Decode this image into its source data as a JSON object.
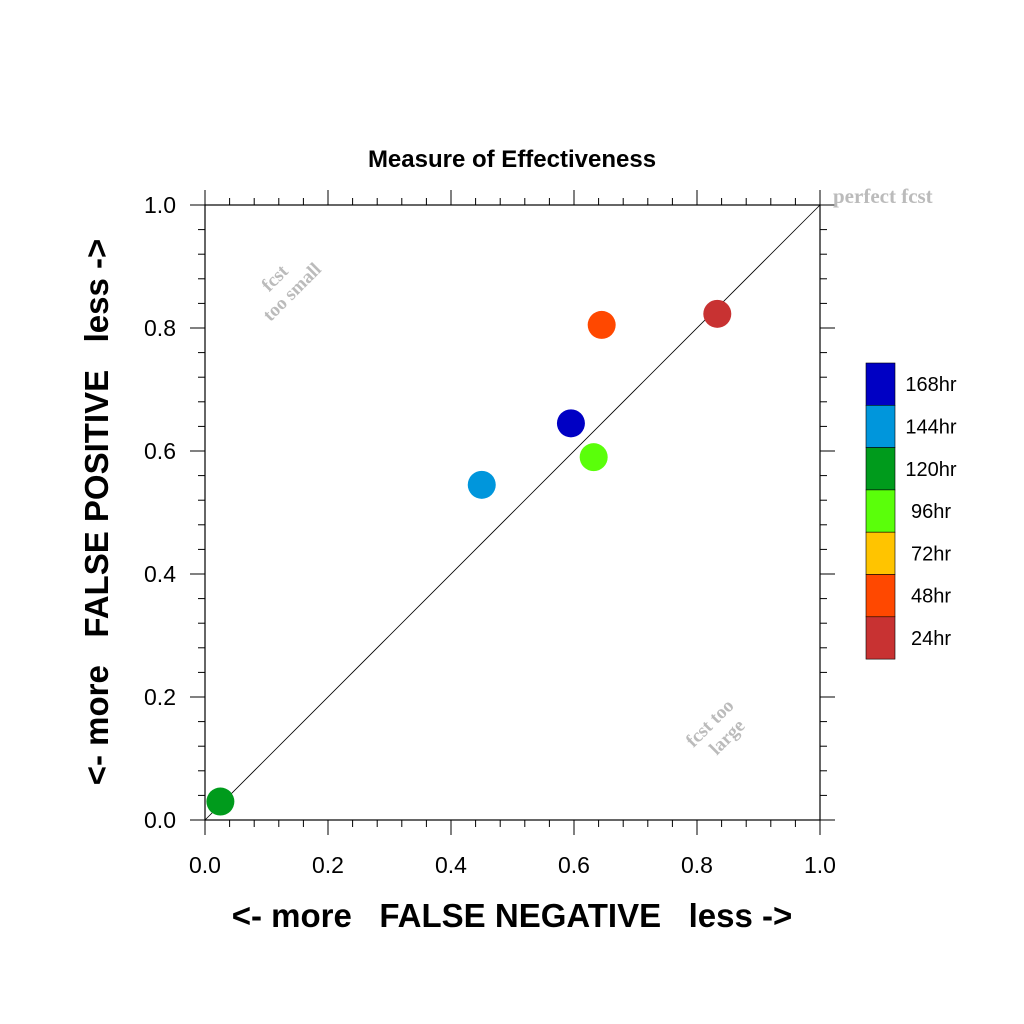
{
  "chart_data": {
    "type": "scatter",
    "title": "Measure of Effectiveness",
    "xlabel": "<- more   FALSE NEGATIVE   less ->",
    "ylabel": "<- more   FALSE POSITIVE   less ->",
    "xlim": [
      0.0,
      1.0
    ],
    "ylim": [
      0.0,
      1.0
    ],
    "xticks": [
      "0.0",
      "0.2",
      "0.4",
      "0.6",
      "0.8",
      "1.0"
    ],
    "yticks": [
      "0.0",
      "0.2",
      "0.4",
      "0.6",
      "0.8",
      "1.0"
    ],
    "grid": false,
    "reference_line": {
      "from": [
        0,
        0
      ],
      "to": [
        1,
        1
      ]
    },
    "annotations": {
      "perfect": "perfect fcst",
      "too_small": [
        "fcst",
        "too small"
      ],
      "too_large": [
        "fcst too",
        "large"
      ]
    },
    "legend_position": "right",
    "legend": [
      {
        "label": "168hr",
        "color": "#0000c4"
      },
      {
        "label": "144hr",
        "color": "#0096dc"
      },
      {
        "label": "120hr",
        "color": "#009b1c"
      },
      {
        "label": "96hr",
        "color": "#5aff0a"
      },
      {
        "label": "72hr",
        "color": "#ffc400"
      },
      {
        "label": "48hr",
        "color": "#ff4800"
      },
      {
        "label": "24hr",
        "color": "#c83232"
      }
    ],
    "points": [
      {
        "series": "168hr",
        "x": 0.595,
        "y": 0.645,
        "color": "#0000c4"
      },
      {
        "series": "144hr",
        "x": 0.45,
        "y": 0.545,
        "color": "#0096dc"
      },
      {
        "series": "120hr",
        "x": 0.025,
        "y": 0.03,
        "color": "#009b1c"
      },
      {
        "series": "96hr",
        "x": 0.632,
        "y": 0.59,
        "color": "#5aff0a"
      },
      {
        "series": "48hr",
        "x": 0.645,
        "y": 0.805,
        "color": "#ff4800"
      },
      {
        "series": "24hr",
        "x": 0.833,
        "y": 0.823,
        "color": "#c83232"
      }
    ]
  }
}
